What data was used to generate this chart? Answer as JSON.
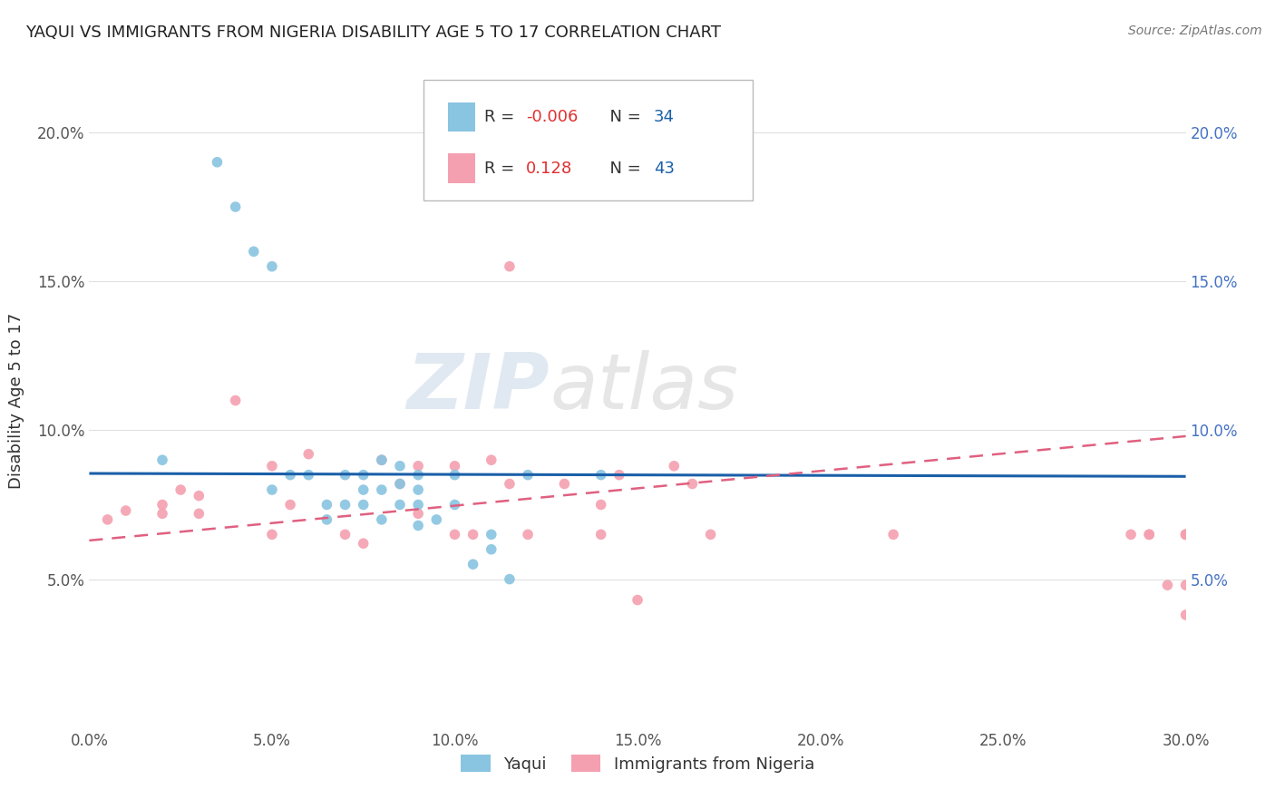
{
  "title": "YAQUI VS IMMIGRANTS FROM NIGERIA DISABILITY AGE 5 TO 17 CORRELATION CHART",
  "source": "Source: ZipAtlas.com",
  "ylabel": "Disability Age 5 to 17",
  "xlim": [
    0.0,
    0.3
  ],
  "ylim": [
    0.0,
    0.22
  ],
  "xticks": [
    0.0,
    0.05,
    0.1,
    0.15,
    0.2,
    0.25,
    0.3
  ],
  "yticks": [
    0.0,
    0.05,
    0.1,
    0.15,
    0.2
  ],
  "color_blue": "#89c4e1",
  "color_pink": "#f4a0b0",
  "color_blue_line": "#1a5fa8",
  "color_pink_line": "#e06080",
  "watermark_zip": "ZIP",
  "watermark_atlas": "atlas",
  "blue_r": -0.006,
  "blue_n": 34,
  "pink_r": 0.128,
  "pink_n": 43,
  "blue_line_x": [
    0.0,
    0.3
  ],
  "blue_line_y": [
    0.0855,
    0.0845
  ],
  "pink_line_x": [
    0.0,
    0.3
  ],
  "pink_line_y": [
    0.063,
    0.098
  ],
  "blue_points_x": [
    0.02,
    0.035,
    0.04,
    0.045,
    0.05,
    0.05,
    0.055,
    0.06,
    0.065,
    0.065,
    0.07,
    0.07,
    0.075,
    0.075,
    0.075,
    0.08,
    0.08,
    0.08,
    0.085,
    0.085,
    0.085,
    0.09,
    0.09,
    0.09,
    0.09,
    0.095,
    0.1,
    0.1,
    0.105,
    0.11,
    0.11,
    0.115,
    0.12,
    0.14
  ],
  "blue_points_y": [
    0.09,
    0.19,
    0.175,
    0.16,
    0.155,
    0.08,
    0.085,
    0.085,
    0.075,
    0.07,
    0.085,
    0.075,
    0.085,
    0.08,
    0.075,
    0.09,
    0.08,
    0.07,
    0.088,
    0.082,
    0.075,
    0.085,
    0.08,
    0.075,
    0.068,
    0.07,
    0.085,
    0.075,
    0.055,
    0.065,
    0.06,
    0.05,
    0.085,
    0.085
  ],
  "pink_points_x": [
    0.005,
    0.01,
    0.02,
    0.02,
    0.025,
    0.03,
    0.03,
    0.04,
    0.05,
    0.05,
    0.055,
    0.06,
    0.07,
    0.075,
    0.08,
    0.085,
    0.09,
    0.09,
    0.1,
    0.1,
    0.105,
    0.11,
    0.115,
    0.115,
    0.12,
    0.13,
    0.14,
    0.14,
    0.145,
    0.15,
    0.16,
    0.165,
    0.17,
    0.22,
    0.285,
    0.29,
    0.29,
    0.295,
    0.3,
    0.3,
    0.3,
    0.3,
    0.3
  ],
  "pink_points_y": [
    0.07,
    0.073,
    0.075,
    0.072,
    0.08,
    0.078,
    0.072,
    0.11,
    0.088,
    0.065,
    0.075,
    0.092,
    0.065,
    0.062,
    0.09,
    0.082,
    0.088,
    0.072,
    0.088,
    0.065,
    0.065,
    0.09,
    0.082,
    0.155,
    0.065,
    0.082,
    0.075,
    0.065,
    0.085,
    0.043,
    0.088,
    0.082,
    0.065,
    0.065,
    0.065,
    0.065,
    0.065,
    0.048,
    0.048,
    0.038,
    0.065,
    0.065,
    0.065
  ]
}
